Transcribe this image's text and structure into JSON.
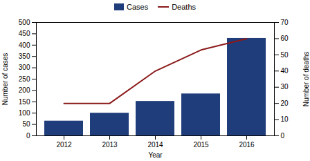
{
  "chart_data": {
    "type": "bar",
    "xlabel": "Year",
    "ylabel": "Number of cases",
    "y2label": "Number of deaths",
    "categories": [
      "2012",
      "2013",
      "2014",
      "2015",
      "2016"
    ],
    "series": [
      {
        "name": "Cases",
        "type": "bar",
        "color": "#1F3D7A",
        "values": [
          65,
          100,
          152,
          185,
          430
        ]
      },
      {
        "name": "Deaths",
        "type": "line",
        "color": "#8B1A1A",
        "axis": "y2",
        "values": [
          20,
          20,
          40,
          53,
          60
        ]
      }
    ],
    "ylim": [
      0,
      500
    ],
    "yticks": [
      0,
      50,
      100,
      150,
      200,
      250,
      300,
      350,
      400,
      450,
      500
    ],
    "y2lim": [
      0,
      70
    ],
    "y2ticks": [
      0,
      10,
      20,
      30,
      40,
      50,
      60,
      70
    ],
    "grid": false,
    "legend": "top"
  }
}
